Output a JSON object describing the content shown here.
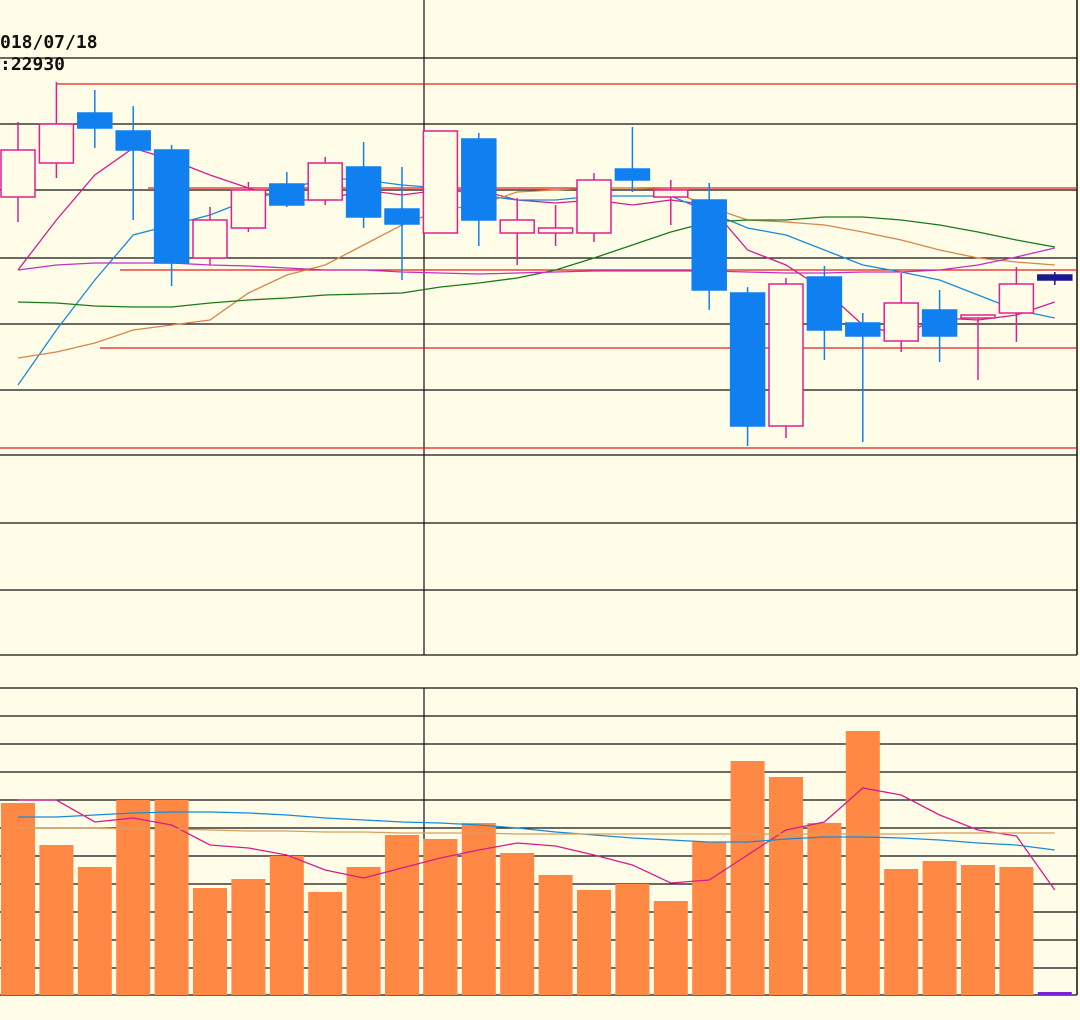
{
  "chart_data": [
    {
      "type": "candlestick",
      "info_lines": [
        "018/07/18",
        ":22930"
      ],
      "open": [
        458,
        492,
        542,
        524,
        505,
        397,
        427,
        471,
        455,
        488,
        446,
        422,
        516,
        422,
        422,
        422,
        486,
        458,
        455,
        362,
        229,
        378,
        332,
        314,
        345,
        337,
        342,
        380
      ],
      "high": [
        533,
        573,
        565,
        549,
        510,
        448,
        473,
        483,
        498,
        513,
        488,
        524,
        522,
        457,
        450,
        482,
        528,
        475,
        472,
        368,
        377,
        389,
        342,
        382,
        365,
        340,
        388,
        383
      ],
      "low": [
        433,
        477,
        507,
        435,
        369,
        390,
        423,
        448,
        450,
        427,
        375,
        422,
        409,
        390,
        409,
        413,
        463,
        430,
        345,
        209,
        217,
        295,
        213,
        303,
        293,
        275,
        313,
        370
      ],
      "close": [
        505,
        531,
        527,
        505,
        392,
        435,
        465,
        450,
        492,
        438,
        431,
        524,
        435,
        435,
        427,
        475,
        475,
        465,
        365,
        229,
        371,
        325,
        319,
        352,
        319,
        340,
        371,
        375
      ],
      "up_color": "#e0208c",
      "down_color": "#1080f0",
      "latest_color": "#1a1a8c",
      "series": [
        {
          "color": "#d81b8c",
          "values": [
            385,
            435,
            480,
            507,
            495,
            480,
            467,
            455,
            455,
            465,
            460,
            465,
            465,
            455,
            452,
            455,
            450,
            455,
            450,
            405,
            390,
            365,
            330,
            320,
            337,
            335,
            340,
            353
          ]
        },
        {
          "color": "#1a8ad8",
          "values": [
            270,
            325,
            375,
            420,
            430,
            440,
            455,
            465,
            477,
            475,
            470,
            467,
            460,
            455,
            455,
            459,
            459,
            459,
            443,
            427,
            420,
            405,
            390,
            383,
            375,
            360,
            345,
            337
          ]
        },
        {
          "color": "#d8844a",
          "values": [
            297,
            303,
            312,
            325,
            330,
            335,
            362,
            380,
            390,
            410,
            430,
            445,
            450,
            463,
            465,
            467,
            467,
            465,
            448,
            435,
            433,
            430,
            423,
            415,
            405,
            397,
            393,
            390
          ]
        },
        {
          "color": "#1a7a1a",
          "values": [
            353,
            352,
            349,
            348,
            348,
            352,
            355,
            357,
            360,
            361,
            362,
            368,
            372,
            377,
            385,
            397,
            410,
            423,
            433,
            435,
            435,
            438,
            438,
            435,
            430,
            423,
            415,
            408
          ]
        },
        {
          "color": "#c030c8",
          "values": [
            385,
            390,
            392,
            392,
            392,
            390,
            389,
            387,
            385,
            385,
            383,
            382,
            381,
            382,
            383,
            384,
            384,
            384,
            384,
            383,
            382,
            382,
            383,
            383,
            385,
            390,
            398,
            407
          ]
        }
      ],
      "levels": [
        571,
        467,
        385,
        307,
        207
      ],
      "level_color": "#e02020",
      "ylim": [
        0,
        655
      ],
      "grid": [
        597,
        531,
        465,
        397,
        331,
        265,
        200,
        132,
        65,
        0
      ]
    },
    {
      "type": "bar",
      "values": [
        192,
        150,
        128,
        195,
        195,
        107,
        116,
        139,
        103,
        128,
        160,
        156,
        172,
        142,
        120,
        105,
        111,
        94,
        153,
        234,
        218,
        172,
        264,
        126,
        134,
        130,
        128,
        3
      ],
      "color": "#ff8844",
      "latest_color": "#7a22d8",
      "series": [
        {
          "color": "#d81b8c",
          "values": [
            195,
            195,
            173,
            177,
            170,
            150,
            147,
            140,
            125,
            117,
            127,
            137,
            145,
            152,
            149,
            140,
            130,
            112,
            115,
            140,
            165,
            173,
            207,
            200,
            180,
            165,
            159,
            105
          ]
        },
        {
          "color": "#1a8ad8",
          "values": [
            178,
            178,
            180,
            182,
            183,
            183,
            182,
            180,
            177,
            175,
            173,
            172,
            170,
            167,
            163,
            160,
            157,
            155,
            153,
            153,
            156,
            158,
            158,
            157,
            155,
            152,
            150,
            145
          ]
        },
        {
          "color": "#d8a060",
          "values": [
            167,
            167,
            167,
            166,
            166,
            165,
            164,
            164,
            163,
            163,
            162,
            162,
            162,
            161,
            161,
            161,
            161,
            161,
            161,
            161,
            161,
            161,
            161,
            161,
            162,
            162,
            162,
            162
          ]
        }
      ],
      "ylim": [
        0,
        307
      ],
      "grid": [
        307,
        279,
        251,
        223,
        195,
        167,
        139,
        111,
        83,
        55,
        27,
        0
      ]
    }
  ]
}
